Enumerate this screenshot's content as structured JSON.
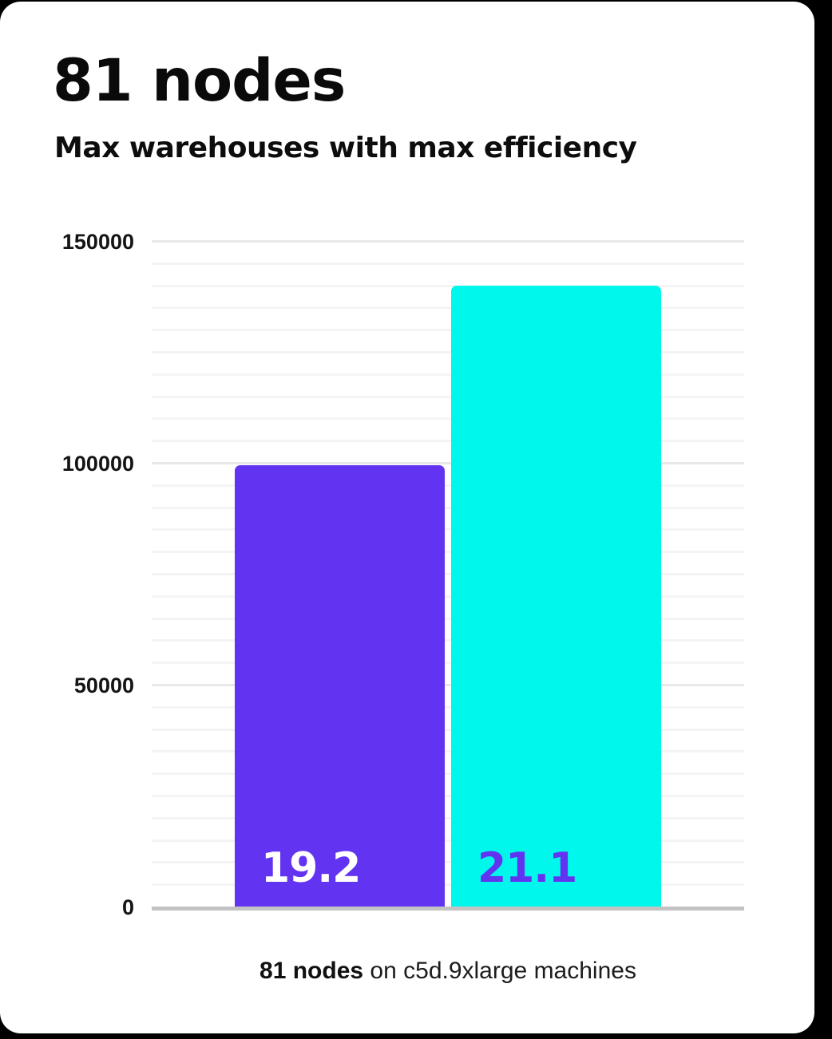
{
  "header": {
    "title": "81 nodes",
    "subtitle": "Max warehouses with max efficiency"
  },
  "caption": {
    "bold": "81 nodes",
    "rest": " on c5d.9xlarge machines"
  },
  "colors": {
    "outside_bg": "#000000",
    "card_bg": "#ffffff",
    "axis_line": "#c3c3c3",
    "gridline_major": "#e8e8e8",
    "gridline_minor": "#f4f4f4",
    "heading_text": "#0a0a0a",
    "purple": "#6333f2",
    "cyan": "#00f7eb"
  },
  "chart_data": {
    "type": "bar",
    "title": "81 nodes",
    "subtitle": "Max warehouses with max efficiency",
    "categories": [
      "19.2",
      "21.1"
    ],
    "values": [
      99500,
      140000
    ],
    "bar_labels": [
      "19.2",
      "21.1"
    ],
    "bar_colors": [
      "#6333f2",
      "#00f7eb"
    ],
    "bar_label_text_colors": [
      "#ffffff",
      "#6333f2"
    ],
    "ylim": [
      0,
      150000
    ],
    "yticks": [
      0,
      50000,
      100000,
      150000
    ],
    "ytick_labels": [
      "0",
      "50000",
      "100000",
      "150000"
    ],
    "minor_gridline_step": 5000,
    "grid": "horizontal",
    "legend_position": "none",
    "xlabel": "",
    "ylabel": "",
    "caption": "81 nodes on c5d.9xlarge machines"
  }
}
